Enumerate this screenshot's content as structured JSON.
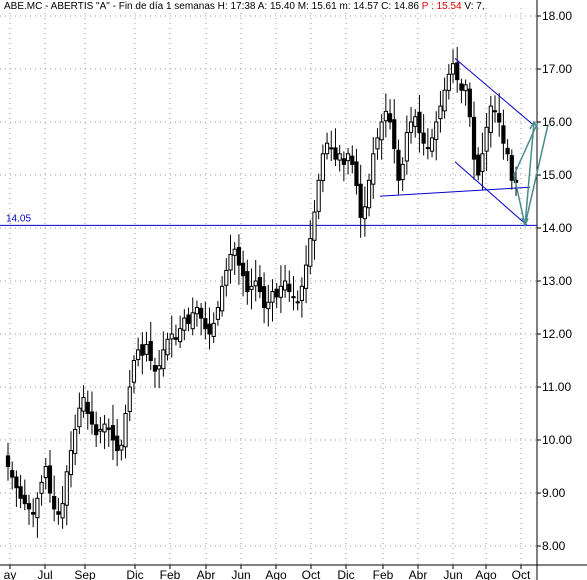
{
  "header": {
    "symbol": "ABE.MC - ABERTIS  \"A\" - Fin de día 1 semanas",
    "h": "H: 17:38",
    "a": "A: 15.40",
    "m": "M: 15.61",
    "mm": "m: 14.57",
    "c": "C: 14.86",
    "p": "P : 15.54",
    "v": "V: 7,"
  },
  "colors": {
    "candle": "#000000",
    "hline": "#0000cc",
    "trend": "#0000cc",
    "arrow": "#4a8a8a",
    "grid": "#9a9a9a"
  },
  "chart_data": {
    "type": "candlestick",
    "ylim": [
      8.0,
      18.0
    ],
    "y_ticks": [
      "8.00",
      "9.00",
      "10.00",
      "11.00",
      "12.00",
      "13.00",
      "14.00",
      "15.00",
      "16.00",
      "17.00",
      "18.00"
    ],
    "x_ticks": [
      "ay",
      "Jul",
      "Sep",
      "Dic",
      "Feb",
      "Abr",
      "Jun",
      "Ago",
      "Oct",
      "Dic",
      "Feb",
      "Abr",
      "Jun",
      "Ago",
      "Oct"
    ],
    "grid": true,
    "hline": {
      "value": 14.05,
      "label": "14.05"
    },
    "close_series": [
      9.5,
      9.3,
      9.1,
      8.9,
      8.8,
      8.7,
      8.6,
      8.9,
      9.2,
      9.5,
      9.0,
      8.7,
      8.6,
      8.8,
      9.4,
      9.8,
      10.2,
      10.6,
      10.8,
      10.5,
      10.3,
      10.1,
      10.2,
      10.3,
      10.2,
      10.0,
      9.8,
      9.9,
      10.5,
      11.0,
      11.5,
      11.7,
      11.6,
      11.8,
      11.5,
      11.3,
      11.4,
      11.7,
      11.9,
      12.0,
      11.9,
      12.1,
      12.3,
      12.2,
      12.4,
      12.5,
      12.3,
      12.1,
      12.0,
      12.2,
      12.5,
      12.9,
      13.2,
      13.5,
      13.6,
      13.3,
      13.1,
      12.8,
      12.9,
      13.0,
      12.8,
      12.5,
      12.6,
      12.8,
      12.7,
      12.9,
      13.0,
      12.8,
      12.7,
      12.6,
      12.9,
      13.3,
      13.8,
      14.3,
      14.9,
      15.4,
      15.6,
      15.5,
      15.3,
      15.4,
      15.2,
      15.4,
      15.2,
      14.8,
      14.2,
      14.4,
      14.9,
      15.4,
      15.7,
      16.0,
      16.2,
      16.0,
      15.5,
      14.9,
      15.2,
      15.8,
      16.0,
      16.1,
      15.8,
      15.6,
      15.5,
      15.7,
      16.0,
      16.3,
      16.6,
      16.9,
      17.1,
      16.8,
      16.6,
      16.7,
      16.1,
      15.3,
      15.0,
      15.4,
      15.9,
      16.3,
      16.2,
      16.0,
      15.6,
      15.4,
      14.9,
      14.86
    ]
  }
}
